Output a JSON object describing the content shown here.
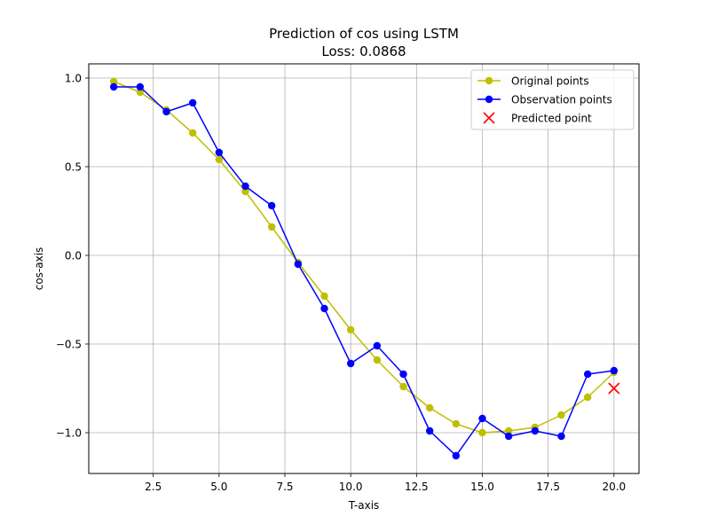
{
  "chart_data": {
    "type": "line",
    "title": "Prediction of cos using LSTM",
    "subtitle": "Loss: 0.0868",
    "xlabel": "T-axis",
    "ylabel": "cos-axis",
    "xlim": [
      0.05,
      20.95
    ],
    "ylim": [
      -1.23,
      1.08
    ],
    "x_ticks": [
      2.5,
      5.0,
      7.5,
      10.0,
      12.5,
      15.0,
      17.5,
      20.0
    ],
    "x_tick_labels": [
      "2.5",
      "5.0",
      "7.5",
      "10.0",
      "12.5",
      "15.0",
      "17.5",
      "20.0"
    ],
    "y_ticks": [
      -1.0,
      -0.5,
      0.0,
      0.5,
      1.0
    ],
    "y_tick_labels": [
      "−1.0",
      "−0.5",
      "0.0",
      "0.5",
      "1.0"
    ],
    "grid": true,
    "legend_position": "top-right",
    "series": [
      {
        "name": "Original points",
        "color": "#bfbf00",
        "marker": "circle",
        "x": [
          1,
          2,
          3,
          4,
          5,
          6,
          7,
          8,
          9,
          10,
          11,
          12,
          13,
          14,
          15,
          16,
          17,
          18,
          19,
          20
        ],
        "values": [
          0.98,
          0.92,
          0.82,
          0.69,
          0.54,
          0.36,
          0.16,
          -0.04,
          -0.23,
          -0.42,
          -0.59,
          -0.74,
          -0.86,
          -0.95,
          -1.0,
          -0.99,
          -0.97,
          -0.9,
          -0.8,
          -0.66
        ]
      },
      {
        "name": "Observation points",
        "color": "#0000ff",
        "marker": "circle",
        "x": [
          1,
          2,
          3,
          4,
          5,
          6,
          7,
          8,
          9,
          10,
          11,
          12,
          13,
          14,
          15,
          16,
          17,
          18,
          19,
          20
        ],
        "values": [
          0.95,
          0.95,
          0.81,
          0.86,
          0.58,
          0.39,
          0.28,
          -0.05,
          -0.3,
          -0.61,
          -0.51,
          -0.67,
          -0.99,
          -1.13,
          -0.92,
          -1.02,
          -0.99,
          -1.02,
          -0.67,
          -0.65
        ]
      },
      {
        "name": "Predicted point",
        "color": "#ff0000",
        "marker": "x",
        "x": [
          20
        ],
        "values": [
          -0.75
        ]
      }
    ]
  }
}
